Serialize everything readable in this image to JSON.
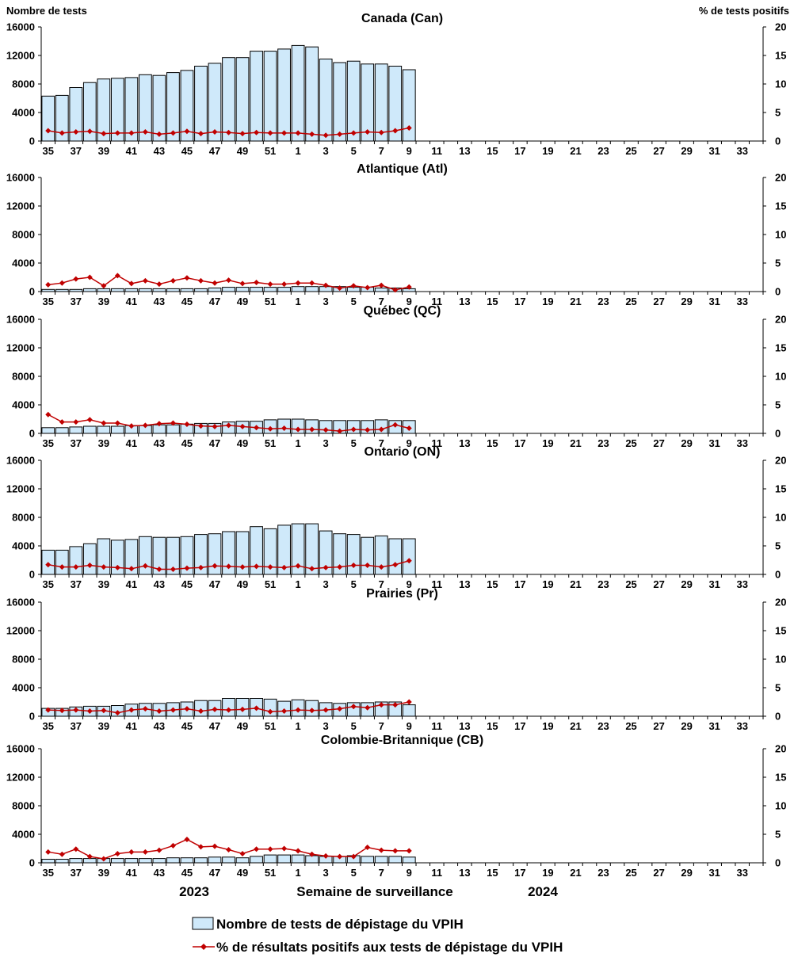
{
  "colors": {
    "bar_fill": "#cfe9fa",
    "bar_stroke": "#000000",
    "line": "#c00000",
    "axis": "#000000"
  },
  "chart_data": {
    "type": "bar",
    "left_axis_label": "Nombre de tests",
    "right_axis_label": "% de tests positifs",
    "ylim_left": [
      0,
      16000
    ],
    "ylim_right": [
      0,
      20
    ],
    "yticks_left": [
      "0",
      "4000",
      "8000",
      "12000",
      "16000"
    ],
    "yticks_right": [
      "0",
      "5",
      "10",
      "15",
      "20"
    ],
    "weeks": [
      35,
      36,
      37,
      38,
      39,
      40,
      41,
      42,
      43,
      44,
      45,
      46,
      47,
      48,
      49,
      50,
      51,
      52,
      1,
      2,
      3,
      4,
      5,
      6,
      7,
      8,
      9,
      10,
      11,
      12,
      13,
      14,
      15,
      16,
      17,
      18,
      19,
      20,
      21,
      22,
      23,
      24,
      25,
      26,
      27,
      28,
      29,
      30,
      31,
      32,
      33,
      34
    ],
    "week_tick_labels": [
      "35",
      "37",
      "39",
      "41",
      "43",
      "45",
      "47",
      "49",
      "51",
      "1",
      "3",
      "5",
      "7",
      "9",
      "11",
      "13",
      "15",
      "17",
      "19",
      "21",
      "23",
      "25",
      "27",
      "29",
      "31",
      "33"
    ],
    "xlabel": "Semaine de surveillance",
    "year_left": "2023",
    "year_right": "2024",
    "legend": {
      "bars": "Nombre de tests de dépistage du VPIH",
      "line": "% de résultats positifs aux tests de dépistage du VPIH"
    },
    "panels": [
      {
        "title": "Canada (Can)",
        "tests": [
          6300,
          6400,
          7500,
          8200,
          8700,
          8800,
          8900,
          9300,
          9200,
          9600,
          9900,
          10500,
          10900,
          11700,
          11700,
          12600,
          12600,
          12900,
          13400,
          13200,
          11500,
          11000,
          11200,
          10800,
          10800,
          10500,
          10000
        ],
        "pct_positive": [
          1.8,
          1.4,
          1.6,
          1.7,
          1.3,
          1.4,
          1.4,
          1.6,
          1.2,
          1.4,
          1.7,
          1.3,
          1.6,
          1.5,
          1.3,
          1.5,
          1.4,
          1.4,
          1.4,
          1.2,
          1.0,
          1.2,
          1.4,
          1.6,
          1.5,
          1.8,
          2.3
        ]
      },
      {
        "title": "Atlantique (Atl)",
        "tests": [
          300,
          300,
          300,
          400,
          400,
          400,
          400,
          400,
          400,
          400,
          400,
          400,
          500,
          600,
          600,
          600,
          600,
          600,
          700,
          700,
          700,
          700,
          600,
          600,
          500,
          500,
          400
        ],
        "pct_positive": [
          1.2,
          1.5,
          2.2,
          2.5,
          1.0,
          2.8,
          1.4,
          1.9,
          1.3,
          1.9,
          2.4,
          1.9,
          1.5,
          2.0,
          1.4,
          1.6,
          1.3,
          1.3,
          1.5,
          1.5,
          1.1,
          0.6,
          1.0,
          0.7,
          1.1,
          0.3,
          0.8
        ]
      },
      {
        "title": "Québec (QC)",
        "tests": [
          800,
          800,
          900,
          1000,
          1000,
          1000,
          1100,
          1100,
          1200,
          1200,
          1300,
          1400,
          1400,
          1600,
          1700,
          1700,
          1900,
          2000,
          2000,
          1900,
          1800,
          1800,
          1800,
          1800,
          1900,
          1800,
          1800
        ],
        "pct_positive": [
          3.3,
          2.0,
          2.0,
          2.4,
          1.8,
          1.8,
          1.3,
          1.4,
          1.7,
          1.8,
          1.6,
          1.3,
          1.2,
          1.4,
          1.2,
          1.0,
          0.8,
          0.9,
          0.7,
          0.7,
          0.6,
          0.4,
          0.7,
          0.6,
          0.7,
          1.5,
          0.9
        ]
      },
      {
        "title": "Ontario (ON)",
        "tests": [
          3400,
          3400,
          3900,
          4300,
          5000,
          4800,
          4900,
          5300,
          5200,
          5200,
          5300,
          5600,
          5700,
          6000,
          6000,
          6700,
          6400,
          6900,
          7100,
          7100,
          6100,
          5700,
          5600,
          5200,
          5400,
          5000,
          5000
        ],
        "pct_positive": [
          1.7,
          1.3,
          1.3,
          1.6,
          1.3,
          1.2,
          1.0,
          1.5,
          0.9,
          0.9,
          1.1,
          1.2,
          1.5,
          1.4,
          1.3,
          1.4,
          1.3,
          1.2,
          1.5,
          1.0,
          1.2,
          1.3,
          1.6,
          1.6,
          1.3,
          1.7,
          2.4
        ]
      },
      {
        "title": "Prairies (Pr)",
        "tests": [
          1100,
          1100,
          1300,
          1400,
          1400,
          1500,
          1700,
          1800,
          1800,
          1900,
          2000,
          2200,
          2200,
          2500,
          2500,
          2500,
          2400,
          2100,
          2300,
          2200,
          1900,
          1800,
          1900,
          1900,
          2000,
          2000,
          1600
        ],
        "pct_positive": [
          1.1,
          1.0,
          1.1,
          0.9,
          1.0,
          0.6,
          1.1,
          1.3,
          0.9,
          1.1,
          1.3,
          0.9,
          1.2,
          1.1,
          1.2,
          1.4,
          0.8,
          0.9,
          1.1,
          1.0,
          1.1,
          1.3,
          1.7,
          1.5,
          2.0,
          2.0,
          2.5
        ]
      },
      {
        "title": "Colombie-Britannique (CB)",
        "tests": [
          500,
          500,
          600,
          600,
          600,
          600,
          600,
          600,
          600,
          700,
          700,
          700,
          800,
          800,
          700,
          900,
          1100,
          1100,
          1100,
          1000,
          900,
          900,
          1000,
          900,
          900,
          900,
          800
        ],
        "pct_positive": [
          1.9,
          1.5,
          2.4,
          1.1,
          0.7,
          1.6,
          1.9,
          1.9,
          2.2,
          3.0,
          4.1,
          2.8,
          2.9,
          2.3,
          1.6,
          2.4,
          2.4,
          2.5,
          2.1,
          1.5,
          1.2,
          1.1,
          1.1,
          2.7,
          2.2,
          2.1,
          2.1
        ]
      }
    ]
  }
}
